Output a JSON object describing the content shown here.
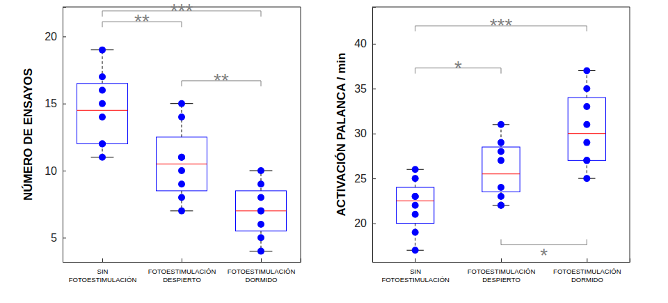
{
  "chart_data": [
    {
      "type": "box",
      "y_label": "NÚMERO DE ENSAYOS",
      "categories": [
        "SIN\nFOTOESTIMULACIÓN",
        "FOTOESTIMULACIÓN\nDESPIERTO",
        "FOTOESTIMULACIÓN\nDORMIDO"
      ],
      "color": "#0000ff",
      "grid": false,
      "ylim": [
        3.2,
        22.2
      ],
      "yticks": [
        5,
        10,
        15,
        20
      ],
      "boxes": [
        {
          "min": 11,
          "q1": 12,
          "median": 14.5,
          "q3": 16.5,
          "max": 19,
          "points": [
            11,
            12,
            12,
            14,
            15,
            16,
            17,
            19
          ]
        },
        {
          "min": 7,
          "q1": 8.5,
          "median": 10.5,
          "q3": 12.5,
          "max": 15,
          "points": [
            7,
            8,
            9,
            10,
            11,
            11,
            14,
            15
          ]
        },
        {
          "min": 4,
          "q1": 5.5,
          "median": 7,
          "q3": 8.5,
          "max": 10,
          "points": [
            4,
            5,
            6,
            7,
            7,
            8,
            9,
            10
          ]
        }
      ],
      "annotations": [
        {
          "text": "**",
          "from": "SIN\nFOTOESTIMULACIÓN",
          "to": "FOTOESTIMULACIÓN\nDESPIERTO",
          "y": 21.1
        },
        {
          "text": "***",
          "from": "SIN\nFOTOESTIMULACIÓN",
          "to": "FOTOESTIMULACIÓN\nDORMIDO",
          "y": 21.9
        },
        {
          "text": "**",
          "from": "FOTOESTIMULACIÓN\nDESPIERTO",
          "to": "FOTOESTIMULACIÓN\nDORMIDO",
          "y": 16.7
        }
      ]
    },
    {
      "type": "box",
      "y_label": "ACTIVACIÓN PALANCA / min",
      "categories": [
        "SIN\nFOTOESTIMULACIÓN",
        "FOTOESTIMULACIÓN\nDESPIERTO",
        "FOTOESTIMULACIÓN\nDORMIDO"
      ],
      "color": "#0000ff",
      "grid": false,
      "ylim": [
        15.7,
        44.1
      ],
      "yticks": [
        20,
        25,
        30,
        35,
        40
      ],
      "boxes": [
        {
          "min": 17,
          "q1": 20,
          "median": 22.5,
          "q3": 24,
          "max": 26,
          "points": [
            17,
            19,
            21,
            22,
            23,
            23,
            25,
            26
          ]
        },
        {
          "min": 22,
          "q1": 23.5,
          "median": 25.5,
          "q3": 28.5,
          "max": 31,
          "points": [
            22,
            22,
            23,
            24,
            27,
            28,
            29,
            31
          ]
        },
        {
          "min": 25,
          "q1": 27,
          "median": 30,
          "q3": 34,
          "max": 37,
          "points": [
            25,
            27,
            27,
            29,
            31,
            33,
            35,
            37
          ]
        }
      ],
      "annotations": [
        {
          "text": "***",
          "from": "SIN\nFOTOESTIMULACIÓN",
          "to": "FOTOESTIMULACIÓN\nDORMIDO",
          "y": 42.0
        },
        {
          "text": "*",
          "from": "SIN\nFOTOESTIMULACIÓN",
          "to": "FOTOESTIMULACIÓN\nDESPIERTO",
          "y": 37.3
        },
        {
          "text": "*",
          "from": "FOTOESTIMULACIÓN\nDESPIERTO",
          "to": "FOTOESTIMULACIÓN\nDORMIDO",
          "y": 17.6,
          "side": "below"
        }
      ]
    }
  ]
}
